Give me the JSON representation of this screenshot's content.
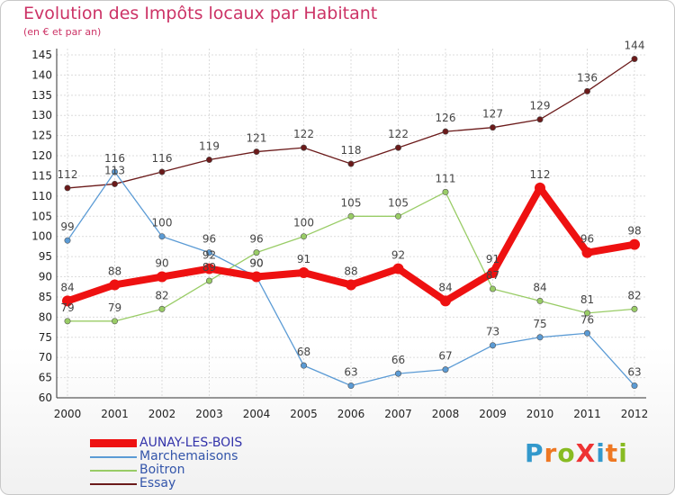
{
  "chart_data": {
    "type": "line",
    "title": "Evolution des Impôts locaux par Habitant",
    "subtitle": "(en € et par an)",
    "xlabel": "",
    "ylabel": "",
    "x": [
      "2000",
      "2001",
      "2002",
      "2003",
      "2004",
      "2005",
      "2006",
      "2007",
      "2008",
      "2009",
      "2010",
      "2011",
      "2012"
    ],
    "ylim": [
      60,
      145
    ],
    "yticks": [
      "60",
      "65",
      "70",
      "75",
      "80",
      "85",
      "90",
      "95",
      "100",
      "105",
      "110",
      "115",
      "120",
      "125",
      "130",
      "135",
      "140",
      "145"
    ],
    "grid": true,
    "legend_position": "bottom-left",
    "series": [
      {
        "name": "Essay",
        "color": "#6b1a1a",
        "values": [
          112,
          113,
          116,
          119,
          121,
          122,
          118,
          122,
          126,
          127,
          129,
          136,
          144
        ],
        "labels": [
          "112",
          "113",
          "116",
          "119",
          "121",
          "122",
          "118",
          "122",
          "126",
          "127",
          "129",
          "136",
          "144"
        ]
      },
      {
        "name": "Marchemaisons",
        "color": "#5b9bd5",
        "values": [
          99,
          116,
          100,
          96,
          90,
          68,
          63,
          66,
          67,
          73,
          75,
          76,
          63
        ],
        "labels": [
          "99",
          "116",
          "100",
          "96",
          "90",
          "68",
          "63",
          "66",
          "67",
          "73",
          "75",
          "76",
          "63"
        ]
      },
      {
        "name": "Boitron",
        "color": "#99cc66",
        "values": [
          79,
          79,
          82,
          89,
          96,
          100,
          105,
          105,
          111,
          87,
          84,
          81,
          82
        ],
        "labels": [
          "79",
          "79",
          "82",
          "89",
          "96",
          "100",
          "105",
          "105",
          "111",
          "87",
          "84",
          "81",
          "82"
        ]
      },
      {
        "name": "AUNAY-LES-BOIS",
        "color": "#ee1111",
        "values": [
          84,
          88,
          90,
          92,
          90,
          91,
          88,
          92,
          84,
          91,
          112,
          96,
          98
        ],
        "labels": [
          "84",
          "88",
          "90",
          "92",
          "90",
          "91",
          "88",
          "92",
          "84",
          "91",
          "112",
          "96",
          "98"
        ]
      }
    ]
  },
  "legend": [
    {
      "name": "AUNAY-LES-BOIS",
      "color": "#ee1111",
      "thickness": "thick"
    },
    {
      "name": "Marchemaisons",
      "color": "#5b9bd5",
      "thickness": "thin"
    },
    {
      "name": "Boitron",
      "color": "#99cc66",
      "thickness": "thin"
    },
    {
      "name": "Essay",
      "color": "#6b1a1a",
      "thickness": "thin"
    }
  ],
  "logo": {
    "text": "ProXiti",
    "letters": [
      "P",
      "r",
      "o",
      "X",
      "i",
      "t",
      "i"
    ],
    "colors": [
      "#3399cc",
      "#ee7722",
      "#88bb22",
      "#ee3333",
      "#3399cc",
      "#ee7722",
      "#88bb22"
    ]
  }
}
